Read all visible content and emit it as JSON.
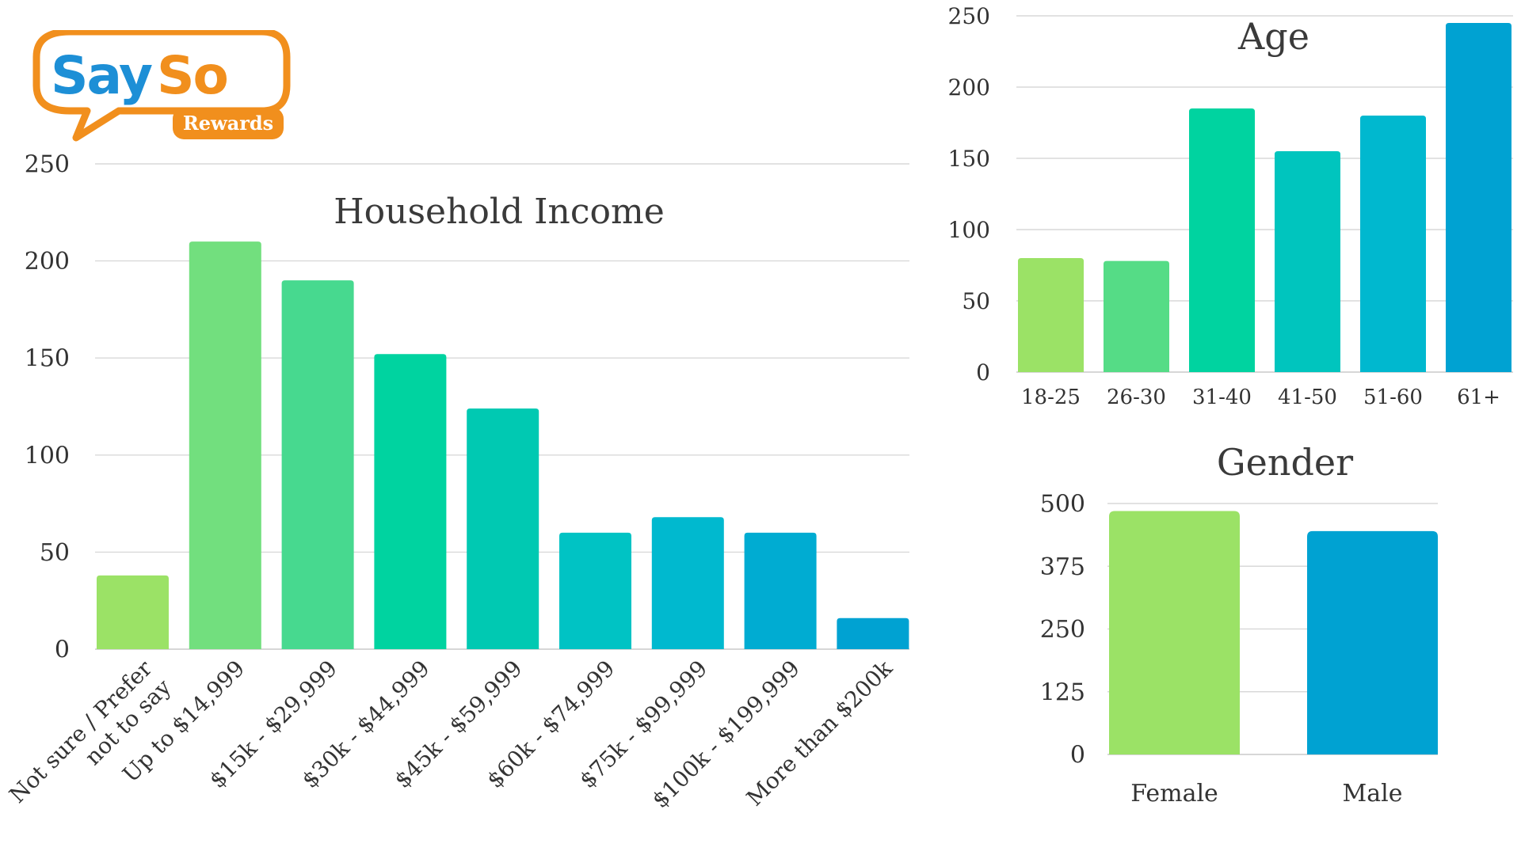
{
  "logo": {
    "brand": "SaySo",
    "tag": "Rewards",
    "colors": {
      "orange": "#f18f1d",
      "blue": "#1d8fd6",
      "white": "#ffffff"
    }
  },
  "chart_data": [
    {
      "id": "income",
      "type": "bar",
      "title": "Household Income",
      "xlabel": "",
      "ylabel": "",
      "categories": [
        "Not sure / Prefer\nnot to say",
        "Up to $14,999",
        "$15k - $29,999",
        "$30k - $44,999",
        "$45k - $59,999",
        "$60k - $74,999",
        "$75k - $99,999",
        "$100k - $199,999",
        "More than $200k"
      ],
      "values": [
        38,
        210,
        190,
        152,
        124,
        60,
        68,
        60,
        16
      ],
      "colors": [
        "#9be266",
        "#72df7e",
        "#47d98f",
        "#00d3a0",
        "#00c9b2",
        "#00c3c4",
        "#00b9cf",
        "#00acd2",
        "#00a2d2"
      ],
      "yticks": [
        0,
        50,
        100,
        150,
        200,
        250
      ],
      "ylim": [
        0,
        250
      ],
      "grid": true,
      "legend": "none"
    },
    {
      "id": "age",
      "type": "bar",
      "title": "Age",
      "xlabel": "",
      "ylabel": "",
      "categories": [
        "18-25",
        "26-30",
        "31-40",
        "41-50",
        "51-60",
        "61+"
      ],
      "values": [
        80,
        78,
        185,
        155,
        180,
        245
      ],
      "colors": [
        "#9be266",
        "#55dc86",
        "#00d3a0",
        "#00c5be",
        "#00b8cf",
        "#00a2d2"
      ],
      "yticks": [
        0,
        50,
        100,
        150,
        200,
        250
      ],
      "ylim": [
        0,
        250
      ],
      "grid": true,
      "legend": "none"
    },
    {
      "id": "gender",
      "type": "bar",
      "title": "Gender",
      "xlabel": "",
      "ylabel": "",
      "categories": [
        "Female",
        "Male"
      ],
      "values": [
        485,
        445
      ],
      "colors": [
        "#9be266",
        "#00a2d2"
      ],
      "yticks": [
        0,
        125,
        250,
        375,
        500
      ],
      "ylim": [
        0,
        500
      ],
      "grid": true,
      "legend": "none"
    }
  ]
}
